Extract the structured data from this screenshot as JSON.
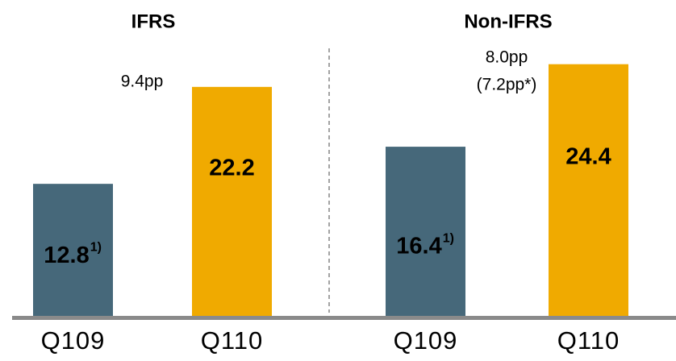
{
  "chart_data": [
    {
      "type": "bar",
      "title": "IFRS",
      "categories": [
        "Q109",
        "Q110"
      ],
      "values": [
        12.8,
        22.2
      ],
      "value_notes": [
        "1)",
        null
      ],
      "colors": [
        "#46687a",
        "#f0aa00"
      ],
      "annotations": [
        "9.4pp"
      ]
    },
    {
      "type": "bar",
      "title": "Non-IFRS",
      "categories": [
        "Q109",
        "Q110"
      ],
      "values": [
        16.4,
        24.4
      ],
      "value_notes": [
        "1)",
        null
      ],
      "colors": [
        "#46687a",
        "#f0aa00"
      ],
      "annotations": [
        "8.0pp",
        "(7.2pp*)"
      ]
    }
  ]
}
